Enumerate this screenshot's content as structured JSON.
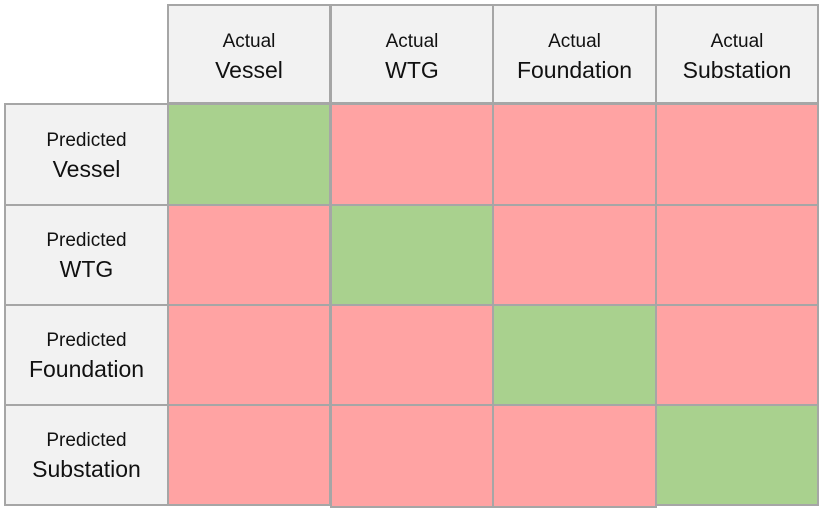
{
  "columns": [
    {
      "prefix": "Actual",
      "label": "Vessel"
    },
    {
      "prefix": "Actual",
      "label": "WTG"
    },
    {
      "prefix": "Actual",
      "label": "Foundation"
    },
    {
      "prefix": "Actual",
      "label": "Substation"
    }
  ],
  "rows": [
    {
      "prefix": "Predicted",
      "label": "Vessel"
    },
    {
      "prefix": "Predicted",
      "label": "WTG"
    },
    {
      "prefix": "Predicted",
      "label": "Foundation"
    },
    {
      "prefix": "Predicted",
      "label": "Substation"
    }
  ],
  "colors": {
    "correct": "#a9d18e",
    "incorrect": "#ffa3a3",
    "header_bg": "#f2f2f2",
    "border": "#a6a6a6"
  },
  "matrix": [
    [
      "correct",
      "incorrect",
      "incorrect",
      "incorrect"
    ],
    [
      "incorrect",
      "correct",
      "incorrect",
      "incorrect"
    ],
    [
      "incorrect",
      "incorrect",
      "correct",
      "incorrect"
    ],
    [
      "incorrect",
      "incorrect",
      "incorrect",
      "correct"
    ]
  ]
}
